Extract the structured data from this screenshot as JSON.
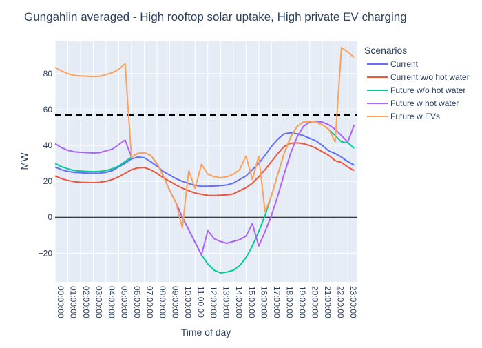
{
  "chart_data": {
    "type": "line",
    "title": "Gungahlin averaged - High rooftop solar uptake, High private EV charging",
    "xlabel": "Time of day",
    "ylabel": "MW",
    "x": [
      0,
      0.5,
      1,
      1.5,
      2,
      2.5,
      3,
      3.5,
      4,
      4.5,
      5,
      5.5,
      6,
      6.5,
      7,
      7.5,
      8,
      8.5,
      9,
      9.5,
      10,
      10.5,
      11,
      11.5,
      12,
      12.5,
      13,
      13.5,
      14,
      14.5,
      15,
      15.5,
      16,
      16.5,
      17,
      17.5,
      18,
      18.5,
      19,
      19.5,
      20,
      20.5,
      21,
      21.5,
      22,
      22.5,
      23,
      23.5
    ],
    "xlim": [
      0,
      23.75
    ],
    "x_ticks": [
      "00:00:00",
      "01:00:00",
      "02:00:00",
      "03:00:00",
      "04:00:00",
      "05:00:00",
      "06:00:00",
      "07:00:00",
      "08:00:00",
      "09:00:00",
      "10:00:00",
      "11:00:00",
      "12:00:00",
      "13:00:00",
      "14:00:00",
      "15:00:00",
      "16:00:00",
      "17:00:00",
      "18:00:00",
      "19:00:00",
      "20:00:00",
      "21:00:00",
      "22:00:00",
      "23:00:00"
    ],
    "ylim": [
      -36,
      98
    ],
    "y_ticks": [
      -20,
      0,
      20,
      40,
      60,
      80
    ],
    "reference_line": {
      "y": 57,
      "style": "dashed",
      "color": "#000000"
    },
    "zero_line": {
      "y": 0,
      "color": "#000000"
    },
    "grid": true,
    "legend": {
      "title": "Scenarios",
      "position": "right"
    },
    "series": [
      {
        "name": "Current",
        "color": "#636efa",
        "values": [
          28,
          26.5,
          25.5,
          25,
          24.8,
          24.6,
          24.5,
          24.6,
          25,
          26,
          28,
          30,
          32.5,
          33.5,
          33.2,
          31,
          28.5,
          25.5,
          23.5,
          21.5,
          20,
          18.8,
          17.8,
          17.2,
          17.3,
          17.4,
          17.6,
          18,
          19,
          21,
          23,
          26.5,
          30,
          34.5,
          39.5,
          43.5,
          46.5,
          47,
          46.5,
          45.5,
          44,
          42.5,
          40,
          37,
          35.5,
          33.5,
          31,
          29
        ]
      },
      {
        "name": "Current w/o hot water",
        "color": "#ef553b",
        "values": [
          23,
          21.5,
          20.5,
          19.8,
          19.5,
          19.4,
          19.3,
          19.5,
          20,
          21,
          22.5,
          24.5,
          26.5,
          27.5,
          27.7,
          26.5,
          24.5,
          22,
          20,
          18,
          16.2,
          14.8,
          13.5,
          12.8,
          12.2,
          12.1,
          12.3,
          12.5,
          13,
          14.8,
          16.5,
          19,
          22.5,
          26.5,
          31,
          35.5,
          39.5,
          41.2,
          41.5,
          41,
          40,
          38.5,
          36.5,
          34.5,
          31.5,
          30.5,
          28,
          26
        ]
      },
      {
        "name": "Future w/o hot water",
        "color": "#00cc96",
        "values": [
          30,
          28.2,
          27,
          26,
          25.7,
          25.5,
          25.4,
          25.5,
          26,
          27,
          28.5,
          31,
          33.5,
          35.5,
          36,
          34.5,
          30,
          23,
          15,
          8,
          0,
          -7,
          -14,
          -21,
          -26,
          -29.5,
          -31,
          -30.5,
          -29.5,
          -27,
          -22.5,
          -16,
          -8,
          1,
          12,
          24,
          35.5,
          44.5,
          50.5,
          53,
          53.5,
          53,
          51.5,
          49,
          45.5,
          42,
          41.5,
          38.5
        ]
      },
      {
        "name": "Future w hot water",
        "color": "#ab63fa",
        "values": [
          41,
          38.8,
          37.3,
          36.5,
          36.2,
          36,
          35.8,
          36,
          37,
          38,
          40.5,
          43,
          33.5,
          35.5,
          36,
          34.5,
          30,
          23,
          15,
          8,
          0,
          -7,
          -14,
          -21,
          -7.5,
          -12,
          -13.5,
          -14.5,
          -13.5,
          -12.5,
          -10.5,
          -3.5,
          -16,
          -8,
          1,
          12,
          24,
          35.5,
          44.5,
          50.5,
          53,
          53.5,
          53,
          51.5,
          49,
          45.5,
          42,
          51.5
        ]
      },
      {
        "name": "Future w EVs",
        "color": "#ffa15a",
        "values": [
          83.5,
          81.5,
          80,
          79,
          78.7,
          78.5,
          78.3,
          78.5,
          79.5,
          80.5,
          82.5,
          85.5,
          33.5,
          35.5,
          36,
          34.5,
          30,
          23,
          15,
          8,
          -6,
          26,
          16,
          29.5,
          24,
          22.5,
          22,
          22.5,
          24,
          26.5,
          34,
          21,
          34,
          3,
          12,
          24,
          35.5,
          44.5,
          50.5,
          53,
          53.5,
          53,
          51.5,
          49,
          42,
          94.5,
          92,
          89
        ]
      }
    ]
  }
}
